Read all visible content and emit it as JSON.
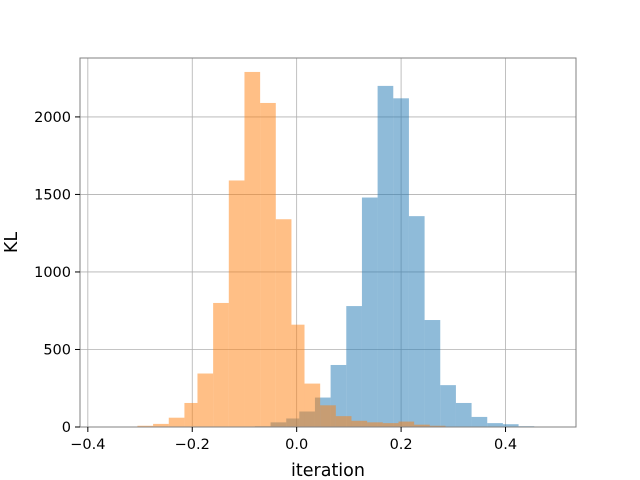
{
  "chart_data": {
    "type": "bar",
    "xlabel": "iteration",
    "ylabel": "KL",
    "xlim": [
      -0.415,
      0.535
    ],
    "ylim": [
      0,
      2380
    ],
    "grid": true,
    "xticks": [
      -0.4,
      -0.2,
      0.0,
      0.2,
      0.4
    ],
    "xtick_labels": [
      "−0.4",
      "−0.2",
      "0.0",
      "0.2",
      "0.4"
    ],
    "yticks": [
      0,
      500,
      1000,
      1500,
      2000
    ],
    "ytick_labels": [
      "0",
      "500",
      "1000",
      "1500",
      "2000"
    ],
    "series": [
      {
        "color": "#1f77b4",
        "opacity": 0.5,
        "bins": [
          {
            "x0": -0.11,
            "x1": -0.08,
            "count": 2
          },
          {
            "x0": -0.08,
            "x1": -0.05,
            "count": 5
          },
          {
            "x0": -0.05,
            "x1": -0.02,
            "count": 30
          },
          {
            "x0": -0.02,
            "x1": 0.005,
            "count": 55
          },
          {
            "x0": 0.005,
            "x1": 0.035,
            "count": 100
          },
          {
            "x0": 0.035,
            "x1": 0.065,
            "count": 190
          },
          {
            "x0": 0.065,
            "x1": 0.095,
            "count": 400
          },
          {
            "x0": 0.095,
            "x1": 0.125,
            "count": 780
          },
          {
            "x0": 0.125,
            "x1": 0.155,
            "count": 1480
          },
          {
            "x0": 0.155,
            "x1": 0.185,
            "count": 2200
          },
          {
            "x0": 0.185,
            "x1": 0.215,
            "count": 2120
          },
          {
            "x0": 0.215,
            "x1": 0.245,
            "count": 1360
          },
          {
            "x0": 0.245,
            "x1": 0.275,
            "count": 690
          },
          {
            "x0": 0.275,
            "x1": 0.305,
            "count": 270
          },
          {
            "x0": 0.305,
            "x1": 0.335,
            "count": 155
          },
          {
            "x0": 0.335,
            "x1": 0.365,
            "count": 65
          },
          {
            "x0": 0.365,
            "x1": 0.395,
            "count": 25
          },
          {
            "x0": 0.395,
            "x1": 0.425,
            "count": 18
          },
          {
            "x0": 0.425,
            "x1": 0.455,
            "count": 5
          }
        ]
      },
      {
        "color": "#ff7f0e",
        "opacity": 0.5,
        "bins": [
          {
            "x0": -0.335,
            "x1": -0.305,
            "count": 3
          },
          {
            "x0": -0.305,
            "x1": -0.275,
            "count": 8
          },
          {
            "x0": -0.275,
            "x1": -0.245,
            "count": 20
          },
          {
            "x0": -0.245,
            "x1": -0.215,
            "count": 60
          },
          {
            "x0": -0.215,
            "x1": -0.19,
            "count": 155
          },
          {
            "x0": -0.19,
            "x1": -0.16,
            "count": 345
          },
          {
            "x0": -0.16,
            "x1": -0.13,
            "count": 800
          },
          {
            "x0": -0.13,
            "x1": -0.1,
            "count": 1590
          },
          {
            "x0": -0.1,
            "x1": -0.07,
            "count": 2290
          },
          {
            "x0": -0.07,
            "x1": -0.04,
            "count": 2090
          },
          {
            "x0": -0.04,
            "x1": -0.01,
            "count": 1340
          },
          {
            "x0": -0.01,
            "x1": 0.015,
            "count": 660
          },
          {
            "x0": 0.015,
            "x1": 0.045,
            "count": 280
          },
          {
            "x0": 0.045,
            "x1": 0.075,
            "count": 140
          },
          {
            "x0": 0.075,
            "x1": 0.105,
            "count": 70
          },
          {
            "x0": 0.105,
            "x1": 0.135,
            "count": 40
          },
          {
            "x0": 0.135,
            "x1": 0.165,
            "count": 30
          },
          {
            "x0": 0.165,
            "x1": 0.195,
            "count": 25
          },
          {
            "x0": 0.195,
            "x1": 0.225,
            "count": 35
          },
          {
            "x0": 0.225,
            "x1": 0.255,
            "count": 15
          },
          {
            "x0": 0.255,
            "x1": 0.285,
            "count": 8
          },
          {
            "x0": 0.285,
            "x1": 0.315,
            "count": 3
          }
        ]
      }
    ]
  }
}
